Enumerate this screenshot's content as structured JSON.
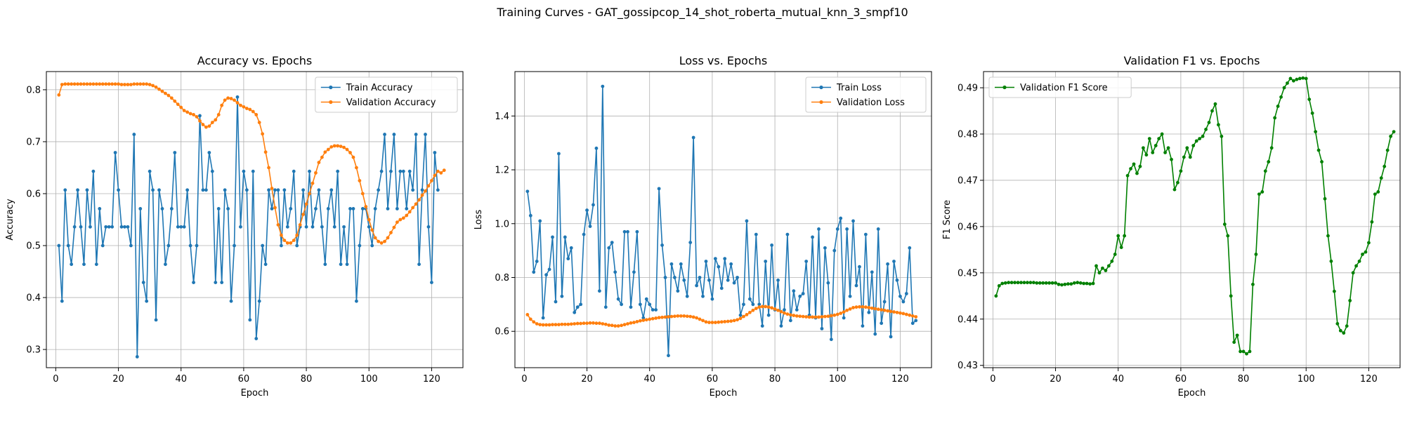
{
  "suptitle": "Training Curves - GAT_gossipcop_14_shot_roberta_mutual_knn_3_smpf10",
  "chart_data": [
    {
      "type": "line",
      "title": "Accuracy vs. Epochs",
      "xlabel": "Epoch",
      "ylabel": "Accuracy",
      "xlim": [
        -3,
        130
      ],
      "ylim": [
        0.265,
        0.835
      ],
      "xticks": [
        0,
        20,
        40,
        60,
        80,
        100,
        120
      ],
      "yticks": [
        0.3,
        0.4,
        0.5,
        0.6,
        0.7,
        0.8
      ],
      "ytick_decimals": 1,
      "grid": true,
      "legend_position": "upper-right",
      "series": [
        {
          "name": "Train Accuracy",
          "color": "#1f77b4",
          "values": [
            0.5,
            0.393,
            0.607,
            0.5,
            0.464,
            0.536,
            0.607,
            0.536,
            0.464,
            0.607,
            0.536,
            0.643,
            0.464,
            0.571,
            0.5,
            0.536,
            0.536,
            0.536,
            0.679,
            0.607,
            0.536,
            0.536,
            0.536,
            0.5,
            0.714,
            0.286,
            0.571,
            0.429,
            0.393,
            0.643,
            0.607,
            0.357,
            0.607,
            0.571,
            0.464,
            0.5,
            0.571,
            0.679,
            0.536,
            0.536,
            0.536,
            0.607,
            0.5,
            0.429,
            0.5,
            0.75,
            0.607,
            0.607,
            0.679,
            0.643,
            0.429,
            0.571,
            0.429,
            0.607,
            0.571,
            0.393,
            0.5,
            0.786,
            0.536,
            0.643,
            0.607,
            0.357,
            0.643,
            0.321,
            0.393,
            0.5,
            0.464,
            0.607,
            0.571,
            0.607,
            0.607,
            0.5,
            0.607,
            0.536,
            0.571,
            0.643,
            0.5,
            0.536,
            0.607,
            0.536,
            0.643,
            0.536,
            0.571,
            0.607,
            0.536,
            0.464,
            0.571,
            0.607,
            0.536,
            0.643,
            0.464,
            0.536,
            0.464,
            0.571,
            0.571,
            0.393,
            0.5,
            0.571,
            0.571,
            0.536,
            0.5,
            0.571,
            0.607,
            0.643,
            0.714,
            0.571,
            0.643,
            0.714,
            0.571,
            0.643,
            0.643,
            0.571,
            0.643,
            0.607,
            0.714,
            0.464,
            0.607,
            0.714,
            0.536,
            0.429,
            0.679,
            0.607
          ]
        },
        {
          "name": "Validation Accuracy",
          "color": "#ff7f0e",
          "values": [
            0.79,
            0.81,
            0.811,
            0.811,
            0.811,
            0.811,
            0.811,
            0.811,
            0.811,
            0.811,
            0.811,
            0.811,
            0.811,
            0.811,
            0.811,
            0.811,
            0.811,
            0.811,
            0.811,
            0.811,
            0.81,
            0.81,
            0.81,
            0.81,
            0.811,
            0.811,
            0.811,
            0.811,
            0.811,
            0.81,
            0.808,
            0.805,
            0.801,
            0.797,
            0.793,
            0.789,
            0.784,
            0.778,
            0.772,
            0.766,
            0.76,
            0.757,
            0.754,
            0.752,
            0.748,
            0.74,
            0.733,
            0.728,
            0.73,
            0.737,
            0.742,
            0.752,
            0.77,
            0.78,
            0.784,
            0.783,
            0.78,
            0.775,
            0.77,
            0.767,
            0.764,
            0.762,
            0.758,
            0.752,
            0.737,
            0.715,
            0.68,
            0.65,
            0.61,
            0.573,
            0.54,
            0.52,
            0.51,
            0.505,
            0.505,
            0.51,
            0.52,
            0.54,
            0.56,
            0.58,
            0.6,
            0.62,
            0.64,
            0.66,
            0.67,
            0.68,
            0.685,
            0.69,
            0.692,
            0.692,
            0.691,
            0.689,
            0.685,
            0.679,
            0.67,
            0.65,
            0.625,
            0.6,
            0.575,
            0.55,
            0.53,
            0.515,
            0.508,
            0.505,
            0.508,
            0.515,
            0.525,
            0.535,
            0.545,
            0.55,
            0.553,
            0.558,
            0.565,
            0.573,
            0.58,
            0.588,
            0.597,
            0.605,
            0.615,
            0.625,
            0.635,
            0.643,
            0.64,
            0.645
          ]
        }
      ]
    },
    {
      "type": "line",
      "title": "Loss vs. Epochs",
      "xlabel": "Epoch",
      "ylabel": "Loss",
      "xlim": [
        -3,
        130
      ],
      "ylim": [
        0.465,
        1.565
      ],
      "xticks": [
        0,
        20,
        40,
        60,
        80,
        100,
        120
      ],
      "yticks": [
        0.6,
        0.8,
        1.0,
        1.2,
        1.4
      ],
      "ytick_decimals": 1,
      "grid": true,
      "legend_position": "upper-right",
      "series": [
        {
          "name": "Train Loss",
          "color": "#1f77b4",
          "values": [
            1.12,
            1.03,
            0.82,
            0.86,
            1.01,
            0.65,
            0.81,
            0.83,
            0.95,
            0.71,
            1.26,
            0.73,
            0.95,
            0.87,
            0.91,
            0.67,
            0.69,
            0.7,
            0.96,
            1.05,
            0.99,
            1.07,
            1.28,
            0.75,
            1.51,
            0.69,
            0.91,
            0.93,
            0.82,
            0.72,
            0.7,
            0.97,
            0.97,
            0.69,
            0.82,
            0.97,
            0.7,
            0.65,
            0.72,
            0.7,
            0.68,
            0.68,
            1.13,
            0.92,
            0.8,
            0.51,
            0.85,
            0.8,
            0.75,
            0.85,
            0.79,
            0.73,
            0.93,
            1.32,
            0.77,
            0.8,
            0.73,
            0.86,
            0.79,
            0.72,
            0.87,
            0.84,
            0.76,
            0.87,
            0.79,
            0.85,
            0.78,
            0.8,
            0.66,
            0.7,
            1.01,
            0.72,
            0.7,
            0.96,
            0.7,
            0.62,
            0.86,
            0.66,
            0.92,
            0.68,
            0.79,
            0.62,
            0.68,
            0.96,
            0.64,
            0.75,
            0.68,
            0.73,
            0.74,
            0.86,
            0.66,
            0.95,
            0.65,
            0.98,
            0.61,
            0.91,
            0.78,
            0.57,
            0.9,
            0.98,
            1.02,
            0.65,
            0.98,
            0.73,
            1.01,
            0.77,
            0.84,
            0.62,
            0.96,
            0.67,
            0.82,
            0.59,
            0.98,
            0.63,
            0.71,
            0.85,
            0.58,
            0.86,
            0.79,
            0.73,
            0.71,
            0.74,
            0.91,
            0.63,
            0.64
          ]
        },
        {
          "name": "Validation Loss",
          "color": "#ff7f0e",
          "values": [
            0.662,
            0.645,
            0.635,
            0.628,
            0.625,
            0.624,
            0.624,
            0.624,
            0.625,
            0.625,
            0.625,
            0.626,
            0.626,
            0.626,
            0.627,
            0.628,
            0.629,
            0.629,
            0.63,
            0.63,
            0.631,
            0.631,
            0.63,
            0.63,
            0.628,
            0.626,
            0.623,
            0.622,
            0.62,
            0.62,
            0.622,
            0.625,
            0.628,
            0.631,
            0.633,
            0.636,
            0.639,
            0.641,
            0.643,
            0.645,
            0.647,
            0.649,
            0.651,
            0.652,
            0.653,
            0.654,
            0.655,
            0.656,
            0.657,
            0.657,
            0.657,
            0.656,
            0.655,
            0.653,
            0.65,
            0.645,
            0.64,
            0.635,
            0.633,
            0.633,
            0.633,
            0.634,
            0.635,
            0.636,
            0.637,
            0.638,
            0.64,
            0.643,
            0.648,
            0.655,
            0.662,
            0.67,
            0.678,
            0.685,
            0.69,
            0.692,
            0.692,
            0.69,
            0.687,
            0.683,
            0.678,
            0.673,
            0.668,
            0.664,
            0.661,
            0.659,
            0.657,
            0.656,
            0.655,
            0.654,
            0.653,
            0.653,
            0.653,
            0.653,
            0.654,
            0.655,
            0.656,
            0.658,
            0.66,
            0.663,
            0.667,
            0.672,
            0.678,
            0.683,
            0.688,
            0.69,
            0.691,
            0.691,
            0.69,
            0.688,
            0.686,
            0.684,
            0.682,
            0.68,
            0.678,
            0.676,
            0.674,
            0.672,
            0.67,
            0.668,
            0.666,
            0.663,
            0.66,
            0.657,
            0.654
          ]
        }
      ]
    },
    {
      "type": "line",
      "title": "Validation F1 vs. Epochs",
      "xlabel": "Epoch",
      "ylabel": "F1 Score",
      "xlim": [
        -3,
        130
      ],
      "ylim": [
        0.4295,
        0.4935
      ],
      "xticks": [
        0,
        20,
        40,
        60,
        80,
        100,
        120
      ],
      "yticks": [
        0.43,
        0.44,
        0.45,
        0.46,
        0.47,
        0.48,
        0.49
      ],
      "ytick_decimals": 2,
      "grid": true,
      "legend_position": "upper-left",
      "series": [
        {
          "name": "Validation F1 Score",
          "color": "#008000",
          "values": [
            0.445,
            0.4472,
            0.4477,
            0.4478,
            0.4479,
            0.4479,
            0.4479,
            0.4479,
            0.4479,
            0.4479,
            0.4479,
            0.4479,
            0.4479,
            0.4478,
            0.4478,
            0.4478,
            0.4478,
            0.4478,
            0.4478,
            0.4478,
            0.4475,
            0.4474,
            0.4475,
            0.4476,
            0.4476,
            0.4478,
            0.4479,
            0.4478,
            0.4477,
            0.4477,
            0.4476,
            0.4477,
            0.4515,
            0.45,
            0.451,
            0.4505,
            0.4515,
            0.4525,
            0.454,
            0.458,
            0.4555,
            0.458,
            0.471,
            0.4725,
            0.4735,
            0.4715,
            0.473,
            0.477,
            0.4755,
            0.479,
            0.476,
            0.4775,
            0.479,
            0.48,
            0.476,
            0.477,
            0.4745,
            0.468,
            0.4695,
            0.472,
            0.475,
            0.477,
            0.475,
            0.4775,
            0.4785,
            0.479,
            0.4795,
            0.481,
            0.4825,
            0.485,
            0.4865,
            0.482,
            0.4795,
            0.4605,
            0.458,
            0.445,
            0.435,
            0.4365,
            0.433,
            0.433,
            0.4325,
            0.433,
            0.4475,
            0.454,
            0.467,
            0.4675,
            0.472,
            0.474,
            0.477,
            0.4835,
            0.486,
            0.488,
            0.49,
            0.491,
            0.492,
            0.4915,
            0.4918,
            0.492,
            0.4921,
            0.492,
            0.4875,
            0.4845,
            0.4805,
            0.4765,
            0.474,
            0.466,
            0.458,
            0.4525,
            0.446,
            0.439,
            0.4375,
            0.437,
            0.4385,
            0.444,
            0.45,
            0.4515,
            0.4525,
            0.454,
            0.4545,
            0.4565,
            0.461,
            0.467,
            0.4675,
            0.4705,
            0.473,
            0.4765,
            0.4795,
            0.4805
          ]
        }
      ]
    }
  ]
}
